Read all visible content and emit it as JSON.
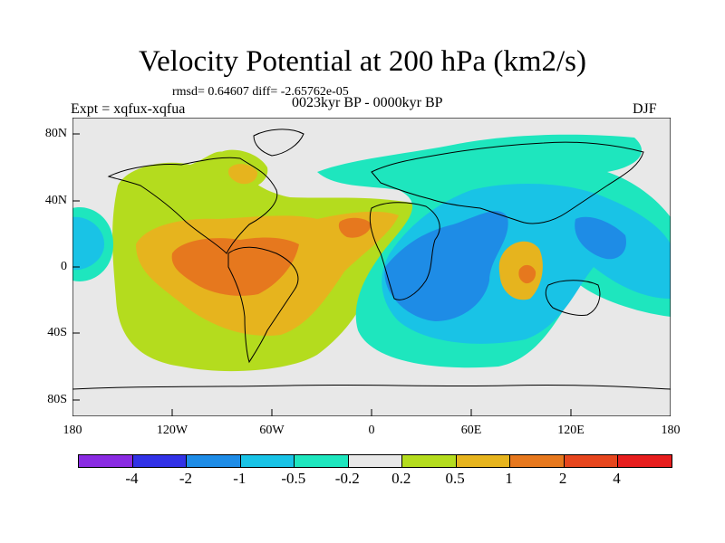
{
  "title": "Velocity Potential at 200 hPa (km2/s)",
  "rmsd_text": "rmsd= 0.64607 diff= -2.65762e-05",
  "experiment": "Expt = xqfux-xqfua",
  "period": "0023kyr BP - 0000kyr BP",
  "season": "DJF",
  "y_axis": {
    "ticks": [
      "80N",
      "40N",
      "0",
      "40S",
      "80S"
    ]
  },
  "x_axis": {
    "ticks": [
      "180",
      "120W",
      "60W",
      "0",
      "60E",
      "120E",
      "180"
    ]
  },
  "colorbar": {
    "colors": [
      "#8a2be2",
      "#3232e6",
      "#1e8ce6",
      "#19c3e6",
      "#1ee6be",
      "#e8e8e8",
      "#b4dc1e",
      "#e6b41e",
      "#e6781e",
      "#e6461e",
      "#e61e1e"
    ],
    "labels": [
      "-4",
      "-2",
      "-1",
      "-0.5",
      "-0.2",
      "0.2",
      "0.5",
      "1",
      "2",
      "4"
    ]
  },
  "map_extent": {
    "lon": [
      -180,
      180
    ],
    "lat": [
      -90,
      90
    ]
  },
  "pattern": [
    {
      "level": "0.5",
      "lon": -70,
      "lat": 5,
      "rx": 45,
      "ry": 32
    },
    {
      "level": "1",
      "lon": -62,
      "lat": 0,
      "rx": 32,
      "ry": 20
    },
    {
      "level": "1",
      "lon": -22,
      "lat": 22,
      "rx": 20,
      "ry": 10
    },
    {
      "level": "0.5",
      "lon": -80,
      "lat": 55,
      "rx": 14,
      "ry": 9
    },
    {
      "level": "-0.5",
      "lon": 60,
      "lat": 5,
      "rx": 45,
      "ry": 30
    },
    {
      "level": "-1",
      "lon": 55,
      "lat": 0,
      "rx": 38,
      "ry": 25
    },
    {
      "level": "-2",
      "lon": 45,
      "lat": 0,
      "rx": 25,
      "ry": 18
    },
    {
      "level": "-1",
      "lon": 135,
      "lat": 10,
      "rx": 18,
      "ry": 14
    },
    {
      "level": "0.5",
      "lon": 100,
      "lat": -12,
      "rx": 15,
      "ry": 18
    },
    {
      "level": "1",
      "lon": 100,
      "lat": -12,
      "rx": 8,
      "ry": 10
    }
  ]
}
